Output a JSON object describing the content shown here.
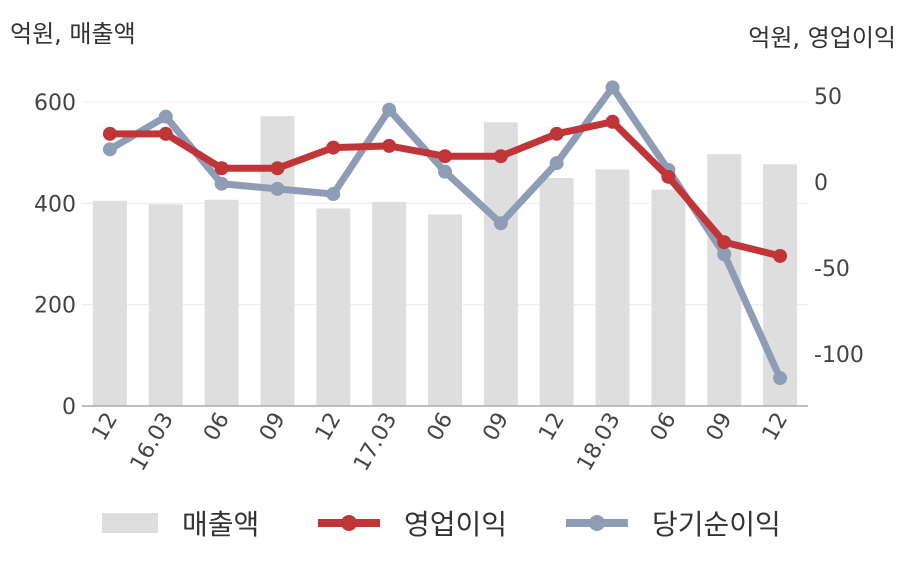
{
  "chart_data": {
    "type": "bar+line",
    "categories": [
      "12",
      "16.03",
      "06",
      "09",
      "12",
      "17.03",
      "06",
      "09",
      "12",
      "18.03",
      "06",
      "09",
      "12"
    ],
    "left_axis": {
      "label": "억원, 매출액",
      "ylim": [
        0,
        600
      ],
      "ticks": [
        0,
        200,
        400,
        600
      ]
    },
    "right_axis": {
      "label": "억원, 영업이익",
      "ylim": [
        -130,
        60
      ],
      "ticks": [
        50,
        0,
        -50,
        -100
      ]
    },
    "series": [
      {
        "name": "매출액",
        "type": "bar",
        "axis": "left",
        "color": "#dedede",
        "values": [
          405,
          398,
          407,
          572,
          390,
          403,
          378,
          560,
          450,
          467,
          427,
          497,
          477
        ]
      },
      {
        "name": "영업이익",
        "type": "line",
        "axis": "right",
        "color": "#c03538",
        "values": [
          28,
          28,
          8,
          8,
          20,
          21,
          15,
          15,
          28,
          35,
          3,
          -35,
          -43
        ]
      },
      {
        "name": "당기순이익",
        "type": "line",
        "axis": "right",
        "color": "#8f9cb6",
        "values": [
          19,
          38,
          -1,
          -4,
          -7,
          42,
          6,
          -24,
          11,
          55,
          7,
          -42,
          -114
        ]
      }
    ],
    "grid": true,
    "legend_position": "bottom"
  }
}
